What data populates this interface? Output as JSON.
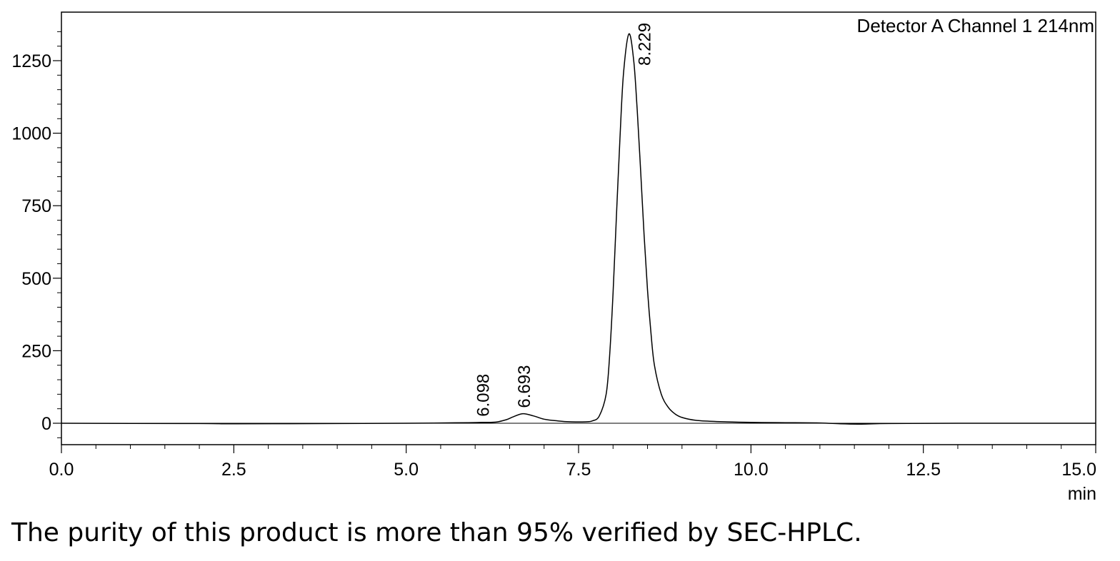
{
  "chart_data": {
    "type": "line",
    "legend": "Detector A Channel 1 214nm",
    "x_unit": "min",
    "xlim": [
      0,
      15
    ],
    "ylim": [
      -75,
      1390
    ],
    "x_ticks": [
      "0.0",
      "2.5",
      "5.0",
      "7.5",
      "10.0",
      "12.5",
      "15.0"
    ],
    "y_ticks": [
      "0",
      "250",
      "500",
      "750",
      "1000",
      "1250"
    ],
    "peaks": [
      {
        "label": "6.098",
        "x": 6.098,
        "y": 3
      },
      {
        "label": "6.693",
        "x": 6.693,
        "y": 33
      },
      {
        "label": "8.229",
        "x": 8.229,
        "y": 1342
      }
    ],
    "series": [
      {
        "x": [
          0.0,
          2.0,
          2.5,
          4.0,
          5.0,
          5.5,
          5.9,
          6.098,
          6.3,
          6.45,
          6.55,
          6.693,
          6.85,
          7.0,
          7.2,
          7.4,
          7.6,
          7.7,
          7.8,
          7.9,
          7.95,
          8.0,
          8.05,
          8.1,
          8.15,
          8.229,
          8.3,
          8.35,
          8.4,
          8.45,
          8.5,
          8.55,
          8.6,
          8.7,
          8.8,
          8.9,
          9.0,
          9.2,
          9.5,
          10.0,
          10.5,
          11.0,
          11.3,
          11.6,
          12.0,
          13.0,
          14.0,
          15.0
        ],
        "y": [
          0,
          -1,
          -2,
          -1,
          0,
          1,
          2,
          3,
          4,
          12,
          22,
          33,
          25,
          14,
          8,
          5,
          5,
          8,
          25,
          100,
          230,
          450,
          720,
          980,
          1200,
          1342,
          1250,
          1080,
          870,
          650,
          460,
          310,
          200,
          100,
          55,
          32,
          20,
          10,
          6,
          3,
          2,
          1,
          -2,
          -3,
          -1,
          0,
          0,
          0
        ]
      }
    ]
  },
  "caption": "The purity of this product is more than 95% verified by SEC-HPLC."
}
